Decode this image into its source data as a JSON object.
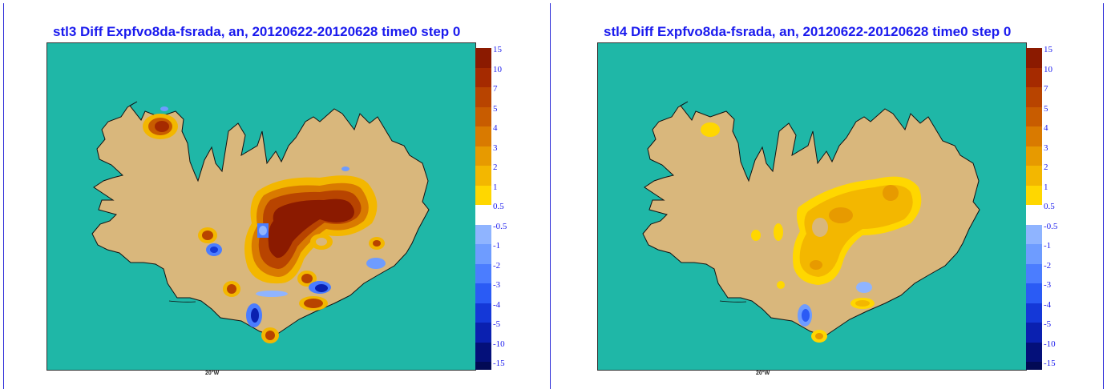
{
  "panels": [
    {
      "title": "stl3 Diff Expfvo8da-fsrada, an, 20120622-20120628 time0 step 0",
      "lon_label": "20°W"
    },
    {
      "title": "stl4 Diff Expfvo8da-fsrada, an, 20120622-20120628 time0 step 0",
      "lon_label": "20°W"
    }
  ],
  "colorbar": {
    "levels": [
      {
        "label": "15",
        "color": "#8b1a00"
      },
      {
        "label": "10",
        "color": "#a52a00"
      },
      {
        "label": "7",
        "color": "#b84400"
      },
      {
        "label": "5",
        "color": "#c85c00"
      },
      {
        "label": "4",
        "color": "#d97a00"
      },
      {
        "label": "3",
        "color": "#e79a00"
      },
      {
        "label": "2",
        "color": "#f3b700"
      },
      {
        "label": "1",
        "color": "#ffd700"
      },
      {
        "label": "0.5",
        "color": "#ffffff"
      },
      {
        "label": "-0.5",
        "color": "#8fb4ff"
      },
      {
        "label": "-1",
        "color": "#6e9cff"
      },
      {
        "label": "-2",
        "color": "#4b7dff"
      },
      {
        "label": "-3",
        "color": "#2a5bf5"
      },
      {
        "label": "-4",
        "color": "#1438d8"
      },
      {
        "label": "-5",
        "color": "#0a20b0"
      },
      {
        "label": "-10",
        "color": "#04107a"
      },
      {
        "label": "-15",
        "color": "#020a55"
      }
    ]
  },
  "colors": {
    "sea": "#1fb7a7",
    "land": "#d9b77c",
    "title": "#1a1aee"
  }
}
